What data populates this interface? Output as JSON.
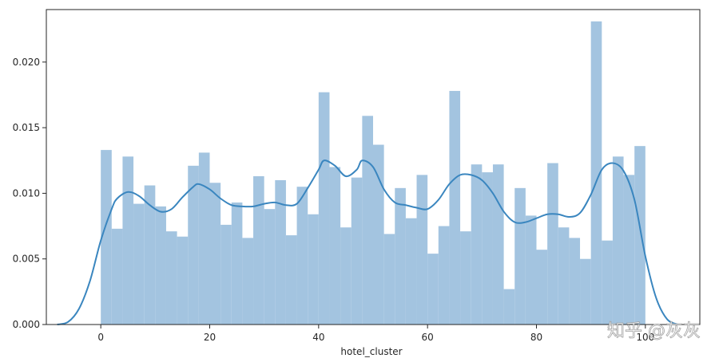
{
  "chart_data": {
    "type": "bar",
    "title": "",
    "xlabel": "hotel_cluster",
    "ylabel": "",
    "xlim": [
      -10,
      110
    ],
    "ylim": [
      0,
      0.024
    ],
    "xticks": [
      0,
      20,
      40,
      60,
      80,
      100
    ],
    "xtick_labels": [
      "0",
      "20",
      "40",
      "60",
      "80",
      "100"
    ],
    "yticks": [
      0,
      0.005,
      0.01,
      0.015,
      0.02
    ],
    "ytick_labels": [
      "0.000",
      "0.005",
      "0.010",
      "0.015",
      "0.020"
    ],
    "grid": false,
    "bar_color": "#a3c4e0",
    "line_color": "#3a86bf",
    "bins": {
      "start": 0,
      "width": 2,
      "values": [
        0.0133,
        0.0073,
        0.0128,
        0.0092,
        0.0106,
        0.009,
        0.0071,
        0.0067,
        0.0121,
        0.0131,
        0.0108,
        0.0076,
        0.0093,
        0.0066,
        0.0113,
        0.0088,
        0.011,
        0.0068,
        0.0105,
        0.0084,
        0.0177,
        0.012,
        0.0074,
        0.0112,
        0.0159,
        0.0137,
        0.0069,
        0.0104,
        0.0081,
        0.0114,
        0.0054,
        0.0075,
        0.0178,
        0.0071,
        0.0122,
        0.0116,
        0.0122,
        0.0027,
        0.0104,
        0.0083,
        0.0057,
        0.0123,
        0.0074,
        0.0066,
        0.005,
        0.0231,
        0.0064,
        0.0128,
        0.0114,
        0.0136
      ]
    },
    "kde": {
      "x": [
        -8,
        -6,
        -4,
        -2,
        0,
        2,
        3,
        5,
        7,
        9,
        11,
        13,
        15,
        17,
        18,
        20,
        22,
        24,
        26,
        28,
        30,
        32,
        34,
        36,
        38,
        40,
        41,
        43,
        45,
        47,
        48,
        50,
        52,
        54,
        56,
        58,
        60,
        62,
        64,
        66,
        68,
        70,
        72,
        74,
        76,
        78,
        80,
        82,
        84,
        86,
        88,
        90,
        92,
        94,
        96,
        98,
        100,
        102,
        104,
        106
      ],
      "y": [
        0.0,
        0.0002,
        0.0012,
        0.0033,
        0.0064,
        0.0088,
        0.0096,
        0.0101,
        0.0098,
        0.0091,
        0.0086,
        0.0088,
        0.0097,
        0.0105,
        0.0107,
        0.0103,
        0.0096,
        0.0091,
        0.009,
        0.009,
        0.0092,
        0.0093,
        0.0091,
        0.0092,
        0.0104,
        0.0118,
        0.0125,
        0.0121,
        0.0113,
        0.0118,
        0.0125,
        0.012,
        0.0103,
        0.0093,
        0.0091,
        0.0089,
        0.0088,
        0.0095,
        0.0107,
        0.0114,
        0.0114,
        0.011,
        0.01,
        0.0086,
        0.0078,
        0.0078,
        0.0081,
        0.0084,
        0.0084,
        0.0082,
        0.0085,
        0.0099,
        0.0118,
        0.0123,
        0.0117,
        0.0095,
        0.0052,
        0.002,
        0.0004,
        0.0
      ]
    }
  },
  "watermark": "知乎 @灰灰"
}
